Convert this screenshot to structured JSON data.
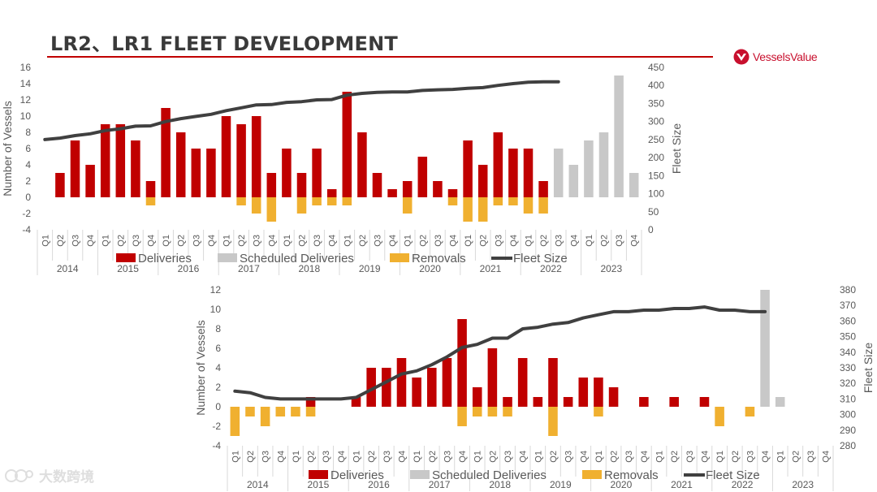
{
  "title": "LR2、LR1 FLEET DEVELOPMENT",
  "brand": {
    "name": "VesselsValue",
    "color": "#c8102e"
  },
  "watermark": "大数跨境",
  "colors": {
    "deliveries": "#c00000",
    "scheduled": "#c8c8c8",
    "removals": "#f0b030",
    "fleet": "#404040",
    "axis": "#d9d9d9",
    "text": "#595959",
    "rule": "#c00000"
  },
  "chart_data": [
    {
      "type": "bar+line",
      "name": "LR2",
      "ylabel": "Number of Vessels",
      "y2label": "Fleet Size",
      "ylim": [
        -4,
        16
      ],
      "yticks": [
        -4,
        -2,
        0,
        2,
        4,
        6,
        8,
        10,
        12,
        14,
        16
      ],
      "y2lim": [
        0,
        450
      ],
      "y2ticks": [
        0,
        50,
        100,
        150,
        200,
        250,
        300,
        350,
        400,
        450
      ],
      "years": [
        "2014",
        "2015",
        "2016",
        "2017",
        "2018",
        "2019",
        "2020",
        "2021",
        "2022",
        "2023"
      ],
      "quarters": [
        "Q1",
        "Q2",
        "Q3",
        "Q4"
      ],
      "legend": [
        "Deliveries",
        "Scheduled Deliveries",
        "Removals",
        "Fleet Size"
      ],
      "deliveries": [
        0,
        3,
        7,
        4,
        9,
        9,
        7,
        2,
        11,
        8,
        6,
        6,
        10,
        9,
        10,
        3,
        6,
        3,
        6,
        1,
        13,
        8,
        3,
        1,
        2,
        5,
        2,
        1,
        7,
        4,
        8,
        6,
        6,
        2,
        0,
        0,
        0,
        0,
        0,
        0
      ],
      "scheduled": [
        0,
        0,
        0,
        0,
        0,
        0,
        0,
        0,
        0,
        0,
        0,
        0,
        0,
        0,
        0,
        0,
        0,
        0,
        0,
        0,
        0,
        0,
        0,
        0,
        0,
        0,
        0,
        0,
        0,
        0,
        0,
        0,
        0,
        0,
        6,
        4,
        7,
        8,
        15,
        3
      ],
      "removals": [
        0,
        0,
        0,
        0,
        0,
        0,
        0,
        -1,
        0,
        0,
        0,
        0,
        0,
        -1,
        -2,
        -3,
        0,
        -2,
        -1,
        -1,
        -1,
        0,
        0,
        0,
        -2,
        0,
        0,
        -1,
        -3,
        -3,
        -1,
        -1,
        -2,
        -2,
        0,
        0,
        0,
        0,
        0,
        0
      ],
      "fleet_size": [
        250,
        254,
        261,
        266,
        275,
        280,
        287,
        288,
        300,
        308,
        314,
        320,
        330,
        338,
        346,
        347,
        353,
        355,
        360,
        361,
        373,
        378,
        381,
        382,
        382,
        386,
        388,
        389,
        392,
        394,
        400,
        405,
        409,
        410,
        410,
        null,
        null,
        null,
        null,
        null
      ]
    },
    {
      "type": "bar+line",
      "name": "LR1",
      "ylabel": "Number of Vessels",
      "y2label": "Fleet Size",
      "ylim": [
        -4,
        12
      ],
      "yticks": [
        -4,
        -2,
        0,
        2,
        4,
        6,
        8,
        10,
        12
      ],
      "y2lim": [
        280,
        380
      ],
      "y2ticks": [
        280,
        290,
        300,
        310,
        320,
        330,
        340,
        350,
        360,
        370,
        380
      ],
      "years": [
        "2014",
        "2015",
        "2016",
        "2017",
        "2018",
        "2019",
        "2020",
        "2021",
        "2022",
        "2023"
      ],
      "quarters": [
        "Q1",
        "Q2",
        "Q3",
        "Q4"
      ],
      "legend": [
        "Deliveries",
        "Scheduled Deliveries",
        "Removals",
        "Fleet Size"
      ],
      "deliveries": [
        0,
        0,
        0,
        0,
        0,
        1,
        0,
        0,
        1,
        4,
        4,
        5,
        3,
        4,
        5,
        9,
        2,
        6,
        1,
        5,
        1,
        5,
        1,
        3,
        3,
        2,
        0,
        1,
        0,
        1,
        0,
        1,
        0,
        0,
        0,
        0,
        0,
        0,
        0,
        0
      ],
      "scheduled": [
        0,
        0,
        0,
        0,
        0,
        0,
        0,
        0,
        0,
        0,
        0,
        0,
        0,
        0,
        0,
        0,
        0,
        0,
        0,
        0,
        0,
        0,
        0,
        0,
        0,
        0,
        0,
        0,
        0,
        0,
        0,
        0,
        0,
        0,
        0,
        12,
        1,
        0,
        0,
        0
      ],
      "removals": [
        -3,
        -1,
        -2,
        -1,
        -1,
        -1,
        0,
        0,
        0,
        0,
        0,
        0,
        0,
        0,
        0,
        -2,
        -1,
        -1,
        -1,
        0,
        0,
        -3,
        0,
        0,
        -1,
        0,
        0,
        0,
        0,
        0,
        0,
        0,
        -2,
        0,
        -1,
        0,
        0,
        0,
        0,
        0
      ],
      "fleet_size": [
        315,
        314,
        311,
        310,
        310,
        310,
        310,
        310,
        311,
        316,
        321,
        326,
        328,
        332,
        337,
        343,
        345,
        349,
        349,
        355,
        356,
        358,
        359,
        362,
        364,
        366,
        366,
        367,
        367,
        368,
        368,
        369,
        367,
        367,
        366,
        366,
        null,
        null,
        null,
        null
      ]
    }
  ]
}
